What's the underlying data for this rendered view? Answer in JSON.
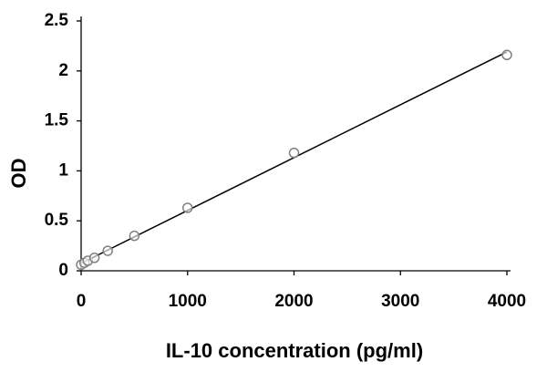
{
  "chart_data": {
    "type": "scatter",
    "x_label": "IL-10 concentration (pg/ml)",
    "y_label": "OD",
    "x": [
      0,
      31.25,
      62.5,
      125,
      250,
      500,
      1000,
      2000,
      4000
    ],
    "values": [
      0.06,
      0.08,
      0.1,
      0.13,
      0.2,
      0.35,
      0.63,
      1.18,
      2.16
    ],
    "color": "#808080",
    "trendline": true,
    "trendline_color": "#000000",
    "xlim": [
      0,
      4000
    ],
    "xticks": [
      0,
      1000,
      2000,
      3000,
      4000
    ],
    "ylim": [
      0,
      2.5
    ],
    "yticks": [
      0,
      0.5,
      1,
      1.5,
      2,
      2.5
    ],
    "grid": false
  }
}
